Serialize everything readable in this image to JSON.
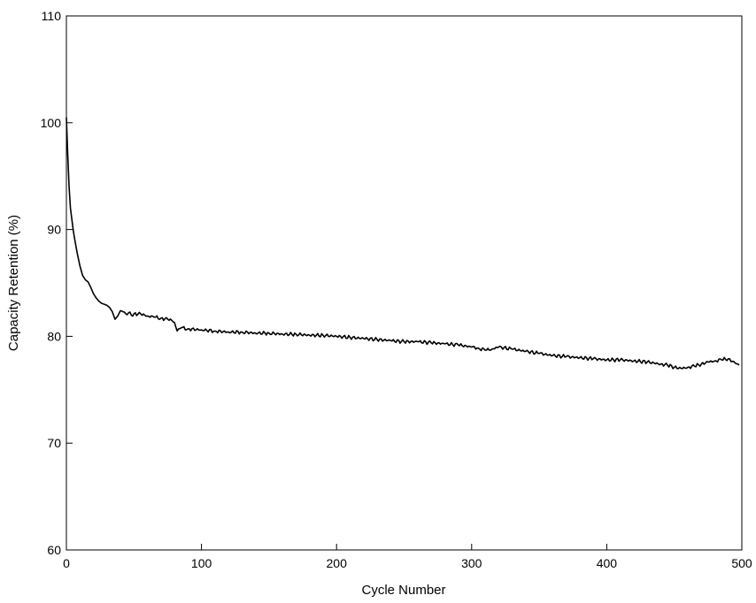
{
  "chart_data": {
    "type": "line",
    "title": "",
    "xlabel": "Cycle Number",
    "ylabel": "Capacity Retention (%)",
    "xlim": [
      0,
      500
    ],
    "ylim": [
      60,
      110
    ],
    "xticks": [
      0,
      100,
      200,
      300,
      400,
      500
    ],
    "yticks": [
      60,
      70,
      80,
      90,
      100,
      110
    ],
    "xtick_labels": [
      "0",
      "100",
      "200",
      "300",
      "400",
      "500"
    ],
    "ytick_labels": [
      "60",
      "70",
      "80",
      "90",
      "100",
      "110"
    ],
    "grid": false,
    "legend": "none",
    "line_color": "#000000",
    "series": [
      {
        "x": [
          0,
          1,
          2,
          3,
          4,
          5,
          6,
          7,
          8,
          9,
          10,
          12,
          14,
          16,
          18,
          20,
          22,
          24,
          26,
          28,
          30,
          32,
          34,
          36,
          38,
          40,
          42,
          44,
          46,
          48,
          50,
          55,
          60,
          65,
          70,
          75,
          78,
          80,
          82,
          85,
          90,
          100,
          110,
          120,
          130,
          140,
          150,
          160,
          170,
          180,
          190,
          200,
          210,
          220,
          230,
          240,
          250,
          260,
          270,
          280,
          290,
          300,
          305,
          310,
          315,
          320,
          330,
          340,
          350,
          360,
          370,
          380,
          390,
          400,
          410,
          420,
          430,
          440,
          445,
          450,
          455,
          460,
          465,
          470,
          475,
          480,
          485,
          490,
          495,
          498
        ],
        "y": [
          100.5,
          97,
          94,
          92,
          91,
          90,
          89.2,
          88.5,
          87.8,
          87.2,
          86.6,
          85.7,
          85.3,
          85.1,
          84.6,
          84.0,
          83.6,
          83.3,
          83.1,
          83.0,
          82.9,
          82.7,
          82.3,
          81.6,
          81.9,
          82.4,
          82.3,
          82.1,
          82.2,
          82.0,
          82.1,
          82.1,
          81.9,
          81.8,
          81.7,
          81.6,
          81.5,
          81.3,
          80.5,
          80.8,
          80.7,
          80.6,
          80.5,
          80.4,
          80.4,
          80.3,
          80.3,
          80.2,
          80.2,
          80.1,
          80.1,
          80.0,
          79.9,
          79.8,
          79.7,
          79.6,
          79.5,
          79.5,
          79.4,
          79.3,
          79.2,
          79.0,
          78.9,
          78.7,
          78.8,
          79.0,
          78.8,
          78.6,
          78.4,
          78.2,
          78.1,
          78.0,
          77.9,
          77.8,
          77.8,
          77.7,
          77.6,
          77.4,
          77.3,
          77.1,
          77.0,
          77.1,
          77.2,
          77.4,
          77.6,
          77.7,
          77.8,
          77.9,
          77.5,
          77.3
        ]
      }
    ]
  }
}
